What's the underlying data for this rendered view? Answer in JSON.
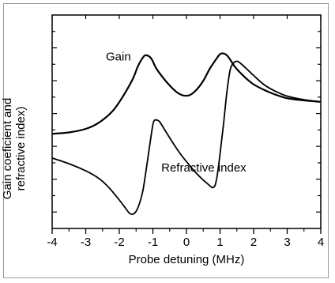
{
  "chart_data": {
    "type": "line",
    "title": "",
    "xlabel": "Probe detuning (MHz)",
    "ylabel": "Gain coeficient and refractive index)",
    "xlim": [
      -4,
      4
    ],
    "x_ticks": [
      "-4",
      "-3",
      "-2",
      "-1",
      "0",
      "1",
      "2",
      "3",
      "4"
    ],
    "y_ticks_labeled": false,
    "grid": false,
    "series": [
      {
        "name": "Gain",
        "color": "#000000",
        "x": [
          -4,
          -3.5,
          -3,
          -2.6,
          -2.2,
          -1.9,
          -1.6,
          -1.45,
          -1.3,
          -1.2,
          -1.05,
          -0.9,
          -0.7,
          -0.5,
          -0.3,
          -0.1,
          0.1,
          0.3,
          0.5,
          0.7,
          0.9,
          1.0,
          1.1,
          1.2,
          1.3,
          1.4,
          1.5,
          1.6,
          1.8,
          2.0,
          2.3,
          2.6,
          3.0,
          3.5,
          4.0
        ],
        "y": [
          -1.94,
          -1.9,
          -1.8,
          -1.62,
          -1.3,
          -0.9,
          -0.4,
          -0.05,
          0.2,
          0.27,
          0.18,
          -0.1,
          -0.36,
          -0.58,
          -0.76,
          -0.86,
          -0.85,
          -0.7,
          -0.45,
          -0.1,
          0.18,
          0.3,
          0.32,
          0.27,
          0.15,
          0.0,
          -0.12,
          -0.22,
          -0.4,
          -0.55,
          -0.7,
          -0.82,
          -0.94,
          -1.0,
          -1.04
        ]
      },
      {
        "name": "Refractive index",
        "color": "#000000",
        "x": [
          -4,
          -3.5,
          -3,
          -2.6,
          -2.3,
          -2.0,
          -1.8,
          -1.7,
          -1.6,
          -1.5,
          -1.4,
          -1.3,
          -1.2,
          -1.1,
          -1.0,
          -0.95,
          -0.9,
          -0.8,
          -0.6,
          -0.4,
          -0.2,
          0.0,
          0.2,
          0.4,
          0.6,
          0.8,
          0.9,
          1.0,
          1.1,
          1.2,
          1.3,
          1.4,
          1.5,
          1.6,
          1.8,
          2.0,
          2.3,
          2.6,
          3.0,
          3.5,
          4.0
        ],
        "y": [
          -2.62,
          -2.78,
          -2.98,
          -3.2,
          -3.46,
          -3.8,
          -4.05,
          -4.17,
          -4.2,
          -4.12,
          -3.9,
          -3.55,
          -2.95,
          -2.3,
          -1.68,
          -1.56,
          -1.55,
          -1.6,
          -1.9,
          -2.2,
          -2.48,
          -2.72,
          -2.95,
          -3.15,
          -3.32,
          -3.45,
          -3.2,
          -2.5,
          -1.7,
          -0.8,
          -0.15,
          0.05,
          0.1,
          0.05,
          -0.12,
          -0.3,
          -0.55,
          -0.72,
          -0.88,
          -0.98,
          -1.04
        ]
      }
    ],
    "annotations": [
      {
        "text": "Gain",
        "x": -2.4,
        "y": 0.12
      },
      {
        "text": "Refractive index",
        "x": -0.75,
        "y": -3.0
      }
    ]
  }
}
